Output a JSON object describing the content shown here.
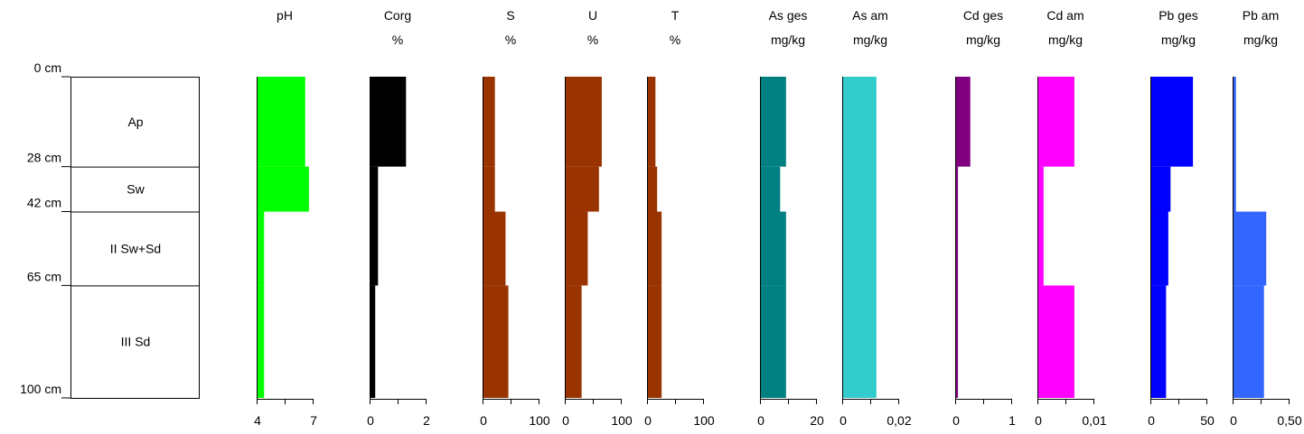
{
  "chart_data": {
    "type": "bar",
    "title": "",
    "depth_axis": {
      "unit": "cm",
      "range": [
        0,
        100
      ],
      "ticks": [
        {
          "depth": 0,
          "label": "0 cm"
        },
        {
          "depth": 28,
          "label": "28 cm"
        },
        {
          "depth": 42,
          "label": "42 cm"
        },
        {
          "depth": 65,
          "label": "65 cm"
        },
        {
          "depth": 100,
          "label": "100 cm"
        }
      ]
    },
    "horizons": [
      {
        "name": "Ap",
        "top": 0,
        "bottom": 28
      },
      {
        "name": "Sw",
        "top": 28,
        "bottom": 42
      },
      {
        "name": "II Sw+Sd",
        "top": 42,
        "bottom": 65
      },
      {
        "name": "III Sd",
        "top": 65,
        "bottom": 100
      }
    ],
    "panels": [
      {
        "name": "pH",
        "unit": "",
        "color": "#00ff00",
        "xmin": 4,
        "xmax": 7,
        "ticks": [
          {
            "v": 4,
            "label": "4"
          },
          {
            "v": 7,
            "label": "7"
          }
        ],
        "minor": [
          5.5
        ],
        "segments": [
          {
            "top": 0,
            "bottom": 28,
            "value": 6.6
          },
          {
            "top": 28,
            "bottom": 42,
            "value": 6.8
          },
          {
            "top": 42,
            "bottom": 65,
            "value": 4.4
          },
          {
            "top": 65,
            "bottom": 100,
            "value": 4.4
          }
        ]
      },
      {
        "name": "Corg",
        "unit": "%",
        "color": "#000000",
        "xmin": 0,
        "xmax": 2,
        "ticks": [
          {
            "v": 0,
            "label": "0"
          },
          {
            "v": 2,
            "label": "2"
          }
        ],
        "minor": [
          1
        ],
        "segments": [
          {
            "top": 0,
            "bottom": 28,
            "value": 1.3
          },
          {
            "top": 28,
            "bottom": 42,
            "value": 0.3
          },
          {
            "top": 42,
            "bottom": 65,
            "value": 0.3
          },
          {
            "top": 65,
            "bottom": 100,
            "value": 0.2
          }
        ]
      },
      {
        "name": "S",
        "unit": "%",
        "color": "#993300",
        "xmin": 0,
        "xmax": 100,
        "ticks": [
          {
            "v": 0,
            "label": "0"
          },
          {
            "v": 100,
            "label": "100"
          }
        ],
        "minor": [
          50
        ],
        "segments": [
          {
            "top": 0,
            "bottom": 28,
            "value": 22
          },
          {
            "top": 28,
            "bottom": 42,
            "value": 22
          },
          {
            "top": 42,
            "bottom": 65,
            "value": 41
          },
          {
            "top": 65,
            "bottom": 100,
            "value": 46
          }
        ]
      },
      {
        "name": "U",
        "unit": "%",
        "color": "#993300",
        "xmin": 0,
        "xmax": 100,
        "ticks": [
          {
            "v": 0,
            "label": "0"
          },
          {
            "v": 100,
            "label": "100"
          }
        ],
        "minor": [
          50
        ],
        "segments": [
          {
            "top": 0,
            "bottom": 28,
            "value": 66
          },
          {
            "top": 28,
            "bottom": 42,
            "value": 61
          },
          {
            "top": 42,
            "bottom": 65,
            "value": 41
          },
          {
            "top": 65,
            "bottom": 100,
            "value": 30
          }
        ]
      },
      {
        "name": "T",
        "unit": "%",
        "color": "#993300",
        "xmin": 0,
        "xmax": 100,
        "ticks": [
          {
            "v": 0,
            "label": "0"
          },
          {
            "v": 100,
            "label": "100"
          }
        ],
        "minor": [
          50
        ],
        "segments": [
          {
            "top": 0,
            "bottom": 28,
            "value": 15
          },
          {
            "top": 28,
            "bottom": 42,
            "value": 18
          },
          {
            "top": 42,
            "bottom": 65,
            "value": 26
          },
          {
            "top": 65,
            "bottom": 100,
            "value": 26
          }
        ]
      },
      {
        "name": "As ges",
        "unit": "mg/kg",
        "color": "#008080",
        "xmin": 0,
        "xmax": 20,
        "ticks": [
          {
            "v": 0,
            "label": "0"
          },
          {
            "v": 20,
            "label": "20"
          }
        ],
        "minor": [
          10
        ],
        "segments": [
          {
            "top": 0,
            "bottom": 28,
            "value": 9.3
          },
          {
            "top": 28,
            "bottom": 42,
            "value": 7.2
          },
          {
            "top": 42,
            "bottom": 65,
            "value": 9.3
          },
          {
            "top": 65,
            "bottom": 100,
            "value": 9.3
          }
        ]
      },
      {
        "name": "As am",
        "unit": "mg/kg",
        "color": "#33cccc",
        "xmin": 0,
        "xmax": 0.02,
        "ticks": [
          {
            "v": 0,
            "label": "0"
          },
          {
            "v": 0.02,
            "label": "0,02"
          }
        ],
        "minor": [
          0.01
        ],
        "segments": [
          {
            "top": 0,
            "bottom": 100,
            "value": 0.0122
          }
        ]
      },
      {
        "name": "Cd ges",
        "unit": "mg/kg",
        "color": "#800080",
        "xmin": 0,
        "xmax": 1,
        "ticks": [
          {
            "v": 0,
            "label": "0"
          },
          {
            "v": 1,
            "label": "1"
          }
        ],
        "minor": [
          0.5
        ],
        "segments": [
          {
            "top": 0,
            "bottom": 28,
            "value": 0.27
          },
          {
            "top": 28,
            "bottom": 42,
            "value": 0.05
          },
          {
            "top": 42,
            "bottom": 65,
            "value": 0.05
          },
          {
            "top": 65,
            "bottom": 100,
            "value": 0.05
          }
        ]
      },
      {
        "name": "Cd am",
        "unit": "mg/kg",
        "color": "#ff00ff",
        "xmin": 0,
        "xmax": 0.01,
        "ticks": [
          {
            "v": 0,
            "label": "0"
          },
          {
            "v": 0.01,
            "label": "0,01"
          }
        ],
        "minor": [
          0.005
        ],
        "segments": [
          {
            "top": 0,
            "bottom": 28,
            "value": 0.0066
          },
          {
            "top": 28,
            "bottom": 42,
            "value": 0.0011
          },
          {
            "top": 42,
            "bottom": 65,
            "value": 0.0011
          },
          {
            "top": 65,
            "bottom": 100,
            "value": 0.0066
          }
        ]
      },
      {
        "name": "Pb ges",
        "unit": "mg/kg",
        "color": "#0000ff",
        "xmin": 0,
        "xmax": 50,
        "ticks": [
          {
            "v": 0,
            "label": "0"
          },
          {
            "v": 50,
            "label": "50"
          }
        ],
        "minor": [
          25
        ],
        "segments": [
          {
            "top": 0,
            "bottom": 28,
            "value": 38
          },
          {
            "top": 28,
            "bottom": 42,
            "value": 18
          },
          {
            "top": 42,
            "bottom": 65,
            "value": 16
          },
          {
            "top": 65,
            "bottom": 100,
            "value": 14
          }
        ]
      },
      {
        "name": "Pb am",
        "unit": "mg/kg",
        "color": "#3366ff",
        "xmin": 0,
        "xmax": 0.5,
        "ticks": [
          {
            "v": 0,
            "label": "0"
          },
          {
            "v": 0.5,
            "label": "0,50"
          }
        ],
        "minor": [
          0.25
        ],
        "segments": [
          {
            "top": 0,
            "bottom": 42,
            "value": 0.03
          },
          {
            "top": 42,
            "bottom": 65,
            "value": 0.3
          },
          {
            "top": 65,
            "bottom": 100,
            "value": 0.28
          }
        ]
      }
    ]
  }
}
